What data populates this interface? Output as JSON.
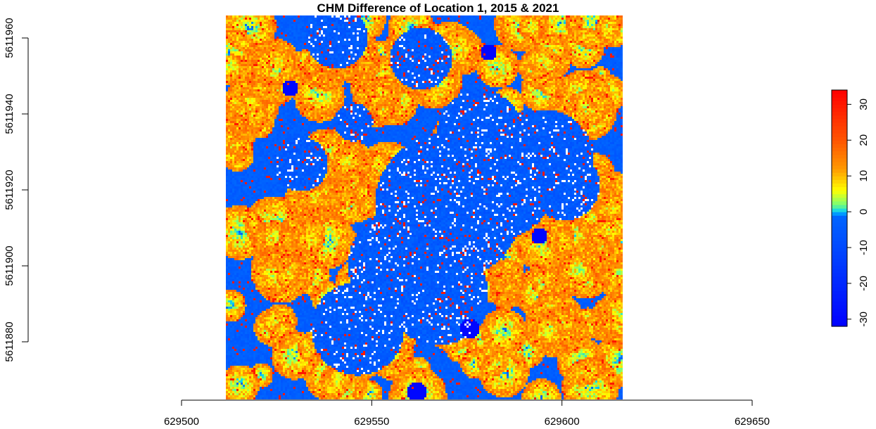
{
  "chart_data": {
    "type": "heatmap",
    "title": "CHM Difference of Location 1, 2015 & 2021",
    "xlabel": "",
    "ylabel": "",
    "x_ticks": [
      629500,
      629550,
      629600,
      629650
    ],
    "y_ticks": [
      5611880,
      5611900,
      5611920,
      5611940,
      5611960
    ],
    "xlim": [
      629500,
      629650
    ],
    "ylim": [
      5611880,
      5611960
    ],
    "raster_extent": {
      "xmin": 629512,
      "xmax": 629616,
      "ymin": 5611862,
      "ymax": 5611965
    },
    "colorbar": {
      "range": [
        -32,
        34
      ],
      "ticks": [
        -30,
        -20,
        -10,
        0,
        10,
        20,
        30
      ],
      "stops": [
        {
          "value": -32,
          "color": "#0000ff"
        },
        {
          "value": -1,
          "color": "#0066ff"
        },
        {
          "value": 0,
          "color": "#00ccff"
        },
        {
          "value": 2,
          "color": "#77ff77"
        },
        {
          "value": 6,
          "color": "#ffff00"
        },
        {
          "value": 12,
          "color": "#ff9900"
        },
        {
          "value": 20,
          "color": "#ff5500"
        },
        {
          "value": 34,
          "color": "#ff0000"
        }
      ]
    },
    "grid": false,
    "legend": "right",
    "colors": {
      "positive": "#ff0000",
      "negative": "#0000ff",
      "nodata": "#ffffff"
    }
  }
}
